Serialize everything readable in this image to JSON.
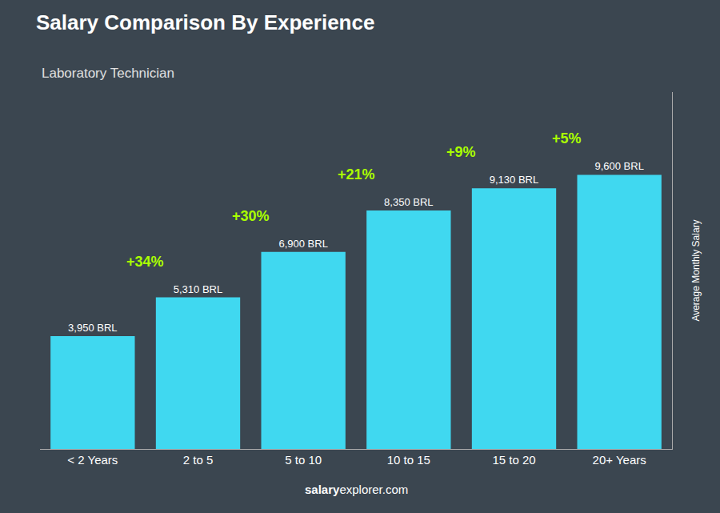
{
  "chart_data": {
    "type": "bar",
    "title": "Salary Comparison By Experience",
    "subtitle": "Laboratory Technician",
    "ylabel": "Average Monthly Salary",
    "footer": [
      "salary",
      "explorer.com"
    ],
    "categories": [
      "< 2 Years",
      "2 to 5",
      "5 to 10",
      "10 to 15",
      "15 to 20",
      "20+ Years"
    ],
    "values": [
      3950,
      5310,
      6900,
      8350,
      9130,
      9600
    ],
    "value_labels": [
      "3,950 BRL",
      "5,310 BRL",
      "6,900 BRL",
      "8,350 BRL",
      "9,130 BRL",
      "9,600 BRL"
    ],
    "data_labels": true,
    "color": "#40d8f0",
    "annotations": [
      {
        "text": "+34%",
        "color": "#aaff00"
      },
      {
        "text": "+30%",
        "color": "#aaff00"
      },
      {
        "text": "+21%",
        "color": "#aaff00"
      },
      {
        "text": "+9%",
        "color": "#aaff00"
      },
      {
        "text": "+5%",
        "color": "#aaff00"
      }
    ],
    "ylim": [
      0,
      12500
    ],
    "yticks": [],
    "grid": false,
    "tick_labels": "x"
  }
}
